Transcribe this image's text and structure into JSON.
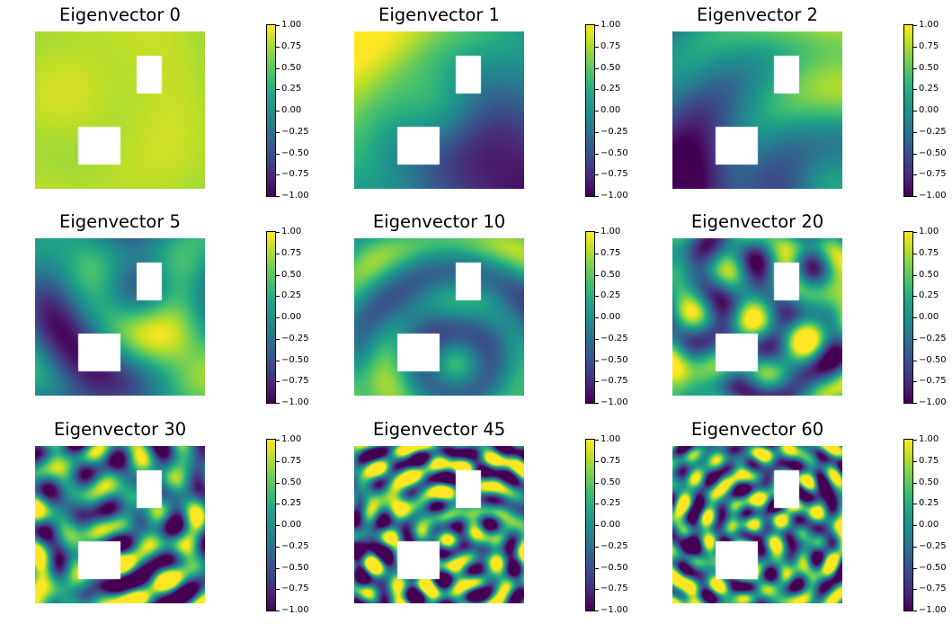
{
  "chart_data": [
    {
      "type": "heatmap",
      "title": "Eigenvector 0",
      "colormap": "viridis",
      "clim": [
        -1.0,
        1.0
      ],
      "colorbar_ticks": [
        "1.00",
        "0.75",
        "0.50",
        "0.25",
        "0.00",
        "−0.25",
        "−0.50",
        "−0.75",
        "−1.00"
      ],
      "field": {
        "base": 0.8,
        "terms": [
          [
            0.06,
            0.5,
            0.45,
            0.8,
            0.0
          ],
          [
            0.05,
            0.15,
            0.4,
            0.35,
            0.0
          ],
          [
            0.04,
            1.0,
            0.9,
            0.6,
            0.0
          ]
        ]
      }
    },
    {
      "type": "heatmap",
      "title": "Eigenvector 1",
      "colormap": "viridis",
      "clim": [
        -1.0,
        1.0
      ],
      "colorbar_ticks": [
        "1.00",
        "0.75",
        "0.50",
        "0.25",
        "0.00",
        "−0.25",
        "−0.50",
        "−0.75",
        "−1.00"
      ],
      "field": {
        "base": 0.0,
        "terms": [
          [
            1.0,
            0.0,
            0.0,
            0.7,
            1.0
          ],
          [
            -1.0,
            0.95,
            0.95,
            0.6,
            1.0
          ],
          [
            0.1,
            0.5,
            0.5,
            0.3,
            0.0
          ]
        ]
      }
    },
    {
      "type": "heatmap",
      "title": "Eigenvector 2",
      "colormap": "viridis",
      "clim": [
        -1.0,
        1.0
      ],
      "colorbar_ticks": [
        "1.00",
        "0.75",
        "0.50",
        "0.25",
        "0.00",
        "−0.25",
        "−0.50",
        "−0.75",
        "−1.00"
      ],
      "field": {
        "base": -0.05,
        "terms": [
          [
            0.9,
            1.0,
            0.0,
            0.55,
            1.0
          ],
          [
            -1.0,
            0.0,
            1.0,
            0.55,
            1.0
          ],
          [
            0.25,
            0.95,
            1.0,
            0.3,
            0.0
          ]
        ]
      }
    },
    {
      "type": "heatmap",
      "title": "Eigenvector 5",
      "colormap": "viridis",
      "clim": [
        -1.0,
        1.0
      ],
      "colorbar_ticks": [
        "1.00",
        "0.75",
        "0.50",
        "0.25",
        "0.00",
        "−0.25",
        "−0.50",
        "−0.75",
        "−1.00"
      ],
      "field": {
        "base": 0.05,
        "terms": [
          [
            -1.0,
            0.25,
            1.0,
            0.35,
            1.0
          ],
          [
            0.9,
            0.95,
            0.9,
            0.28,
            1.0
          ],
          [
            0.3,
            0.1,
            0.1,
            0.4,
            0.0
          ],
          [
            0.3,
            1.0,
            0.0,
            0.35,
            0.0
          ],
          [
            -0.25,
            0.6,
            0.35,
            0.25,
            0.0
          ]
        ]
      }
    },
    {
      "type": "heatmap",
      "title": "Eigenvector 10",
      "colormap": "viridis",
      "clim": [
        -1.0,
        1.0
      ],
      "colorbar_ticks": [
        "1.00",
        "0.75",
        "0.50",
        "0.25",
        "0.00",
        "−0.25",
        "−0.50",
        "−0.75",
        "−1.00"
      ],
      "field": {
        "base": 0.0,
        "terms": [
          [
            0.8,
            0.0,
            1.0,
            0.25,
            1.0
          ],
          [
            0.5,
            1.0,
            0.0,
            0.3,
            1.0
          ],
          [
            0.45,
            0.05,
            0.05,
            0.25,
            1.0
          ],
          [
            -0.5,
            0.35,
            0.5,
            0.2,
            1.0
          ],
          [
            -0.45,
            0.95,
            0.5,
            0.25,
            1.0
          ],
          [
            0.35,
            0.6,
            0.8,
            0.2,
            0.0
          ]
        ]
      }
    },
    {
      "type": "heatmap",
      "title": "Eigenvector 20",
      "colormap": "viridis",
      "clim": [
        -1.0,
        1.0
      ],
      "colorbar_ticks": [
        "1.00",
        "0.75",
        "0.50",
        "0.25",
        "0.00",
        "−0.25",
        "−0.50",
        "−0.75",
        "−1.00"
      ],
      "field": {
        "base": -0.05,
        "terms": [
          [
            0.9,
            0.0,
            0.95,
            0.18,
            1.0
          ],
          [
            0.7,
            1.0,
            0.45,
            0.2,
            1.0
          ],
          [
            0.35,
            0.3,
            0.15,
            0.18,
            0.0
          ],
          [
            -0.3,
            0.6,
            0.6,
            0.18,
            0.0
          ],
          [
            0.3,
            0.55,
            0.85,
            0.15,
            0.0
          ],
          [
            -0.35,
            0.8,
            0.2,
            0.15,
            0.0
          ],
          [
            0.3,
            0.2,
            0.5,
            0.15,
            0.0
          ]
        ]
      }
    },
    {
      "type": "heatmap",
      "title": "Eigenvector 30",
      "colormap": "viridis",
      "clim": [
        -1.0,
        1.0
      ],
      "colorbar_ticks": [
        "1.00",
        "0.75",
        "0.50",
        "0.25",
        "0.00",
        "−0.25",
        "−0.50",
        "−0.75",
        "−1.00"
      ],
      "field": {
        "base": -0.05,
        "terms": [
          [
            0.95,
            0.0,
            0.95,
            0.15,
            1.0
          ],
          [
            0.5,
            0.35,
            0.05,
            0.12,
            0.0
          ],
          [
            -0.45,
            0.05,
            0.05,
            0.12,
            0.0
          ],
          [
            0.4,
            0.45,
            0.5,
            0.12,
            0.0
          ],
          [
            0.35,
            0.75,
            0.45,
            0.1,
            0.0
          ],
          [
            -0.3,
            0.85,
            0.75,
            0.12,
            0.0
          ],
          [
            0.3,
            0.25,
            0.35,
            0.12,
            0.0
          ],
          [
            0.25,
            0.6,
            0.95,
            0.1,
            0.0
          ]
        ]
      }
    },
    {
      "type": "heatmap",
      "title": "Eigenvector 45",
      "colormap": "viridis",
      "clim": [
        -1.0,
        1.0
      ],
      "colorbar_ticks": [
        "1.00",
        "0.75",
        "0.50",
        "0.25",
        "0.00",
        "−0.25",
        "−0.50",
        "−0.75",
        "−1.00"
      ],
      "field": {
        "base": 0.0,
        "terms": [
          [
            0.95,
            0.27,
            0.3,
            0.1,
            1.0
          ],
          [
            -0.95,
            0.05,
            0.6,
            0.1,
            1.0
          ],
          [
            0.6,
            0.05,
            0.95,
            0.1,
            0.0
          ],
          [
            0.45,
            0.55,
            0.62,
            0.08,
            0.0
          ],
          [
            -0.45,
            0.5,
            0.35,
            0.08,
            0.0
          ],
          [
            0.4,
            0.75,
            0.9,
            0.08,
            0.0
          ],
          [
            -0.35,
            0.1,
            0.2,
            0.08,
            0.0
          ],
          [
            0.35,
            0.85,
            0.4,
            0.08,
            0.0
          ],
          [
            -0.3,
            0.65,
            0.8,
            0.08,
            0.0
          ]
        ]
      }
    },
    {
      "type": "heatmap",
      "title": "Eigenvector 60",
      "colormap": "viridis",
      "clim": [
        -1.0,
        1.0
      ],
      "colorbar_ticks": [
        "1.00",
        "0.75",
        "0.50",
        "0.25",
        "0.00",
        "−0.25",
        "−0.50",
        "−0.75",
        "−1.00"
      ],
      "field": {
        "base": 0.0,
        "terms": [
          [
            -1.0,
            0.08,
            0.65,
            0.09,
            1.0
          ],
          [
            -0.9,
            0.9,
            0.28,
            0.08,
            1.0
          ],
          [
            0.85,
            0.05,
            0.95,
            0.1,
            1.0
          ],
          [
            0.6,
            0.8,
            0.6,
            0.1,
            0.0
          ],
          [
            0.5,
            0.2,
            0.4,
            0.08,
            0.0
          ],
          [
            -0.45,
            0.55,
            0.5,
            0.07,
            0.0
          ],
          [
            0.35,
            0.4,
            0.1,
            0.07,
            0.0
          ],
          [
            0.35,
            0.55,
            0.9,
            0.07,
            0.0
          ],
          [
            -0.3,
            0.3,
            0.8,
            0.07,
            0.0
          ]
        ]
      }
    }
  ]
}
